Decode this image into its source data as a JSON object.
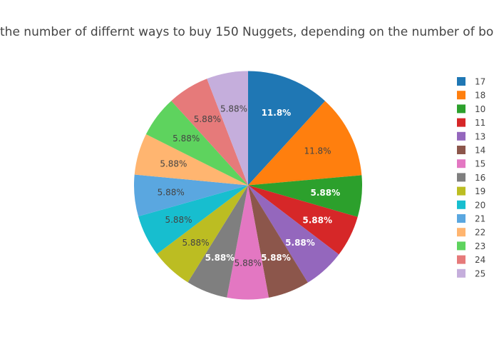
{
  "chart_data": {
    "type": "pie",
    "title": "the number of differnt ways to buy 150 Nuggets, depending on the number of bo",
    "legend_placement": "right",
    "slices": [
      {
        "label": "17",
        "value": 11.8,
        "display": "11.8%",
        "color": "#1f77b4",
        "text_color": "#ffffff"
      },
      {
        "label": "18",
        "value": 11.8,
        "display": "11.8%",
        "color": "#ff7f0e",
        "text_color": "#444444"
      },
      {
        "label": "10",
        "value": 5.88,
        "display": "5.88%",
        "color": "#2ca02c",
        "text_color": "#ffffff"
      },
      {
        "label": "11",
        "value": 5.88,
        "display": "5.88%",
        "color": "#d62728",
        "text_color": "#ffffff"
      },
      {
        "label": "13",
        "value": 5.88,
        "display": "5.88%",
        "color": "#9467bd",
        "text_color": "#ffffff"
      },
      {
        "label": "14",
        "value": 5.88,
        "display": "5.88%",
        "color": "#8c564b",
        "text_color": "#ffffff"
      },
      {
        "label": "15",
        "value": 5.88,
        "display": "5.88%",
        "color": "#e377c2",
        "text_color": "#444444"
      },
      {
        "label": "16",
        "value": 5.88,
        "display": "5.88%",
        "color": "#7f7f7f",
        "text_color": "#ffffff"
      },
      {
        "label": "19",
        "value": 5.88,
        "display": "5.88%",
        "color": "#bcbd22",
        "text_color": "#444444"
      },
      {
        "label": "20",
        "value": 5.88,
        "display": "5.88%",
        "color": "#17becf",
        "text_color": "#444444"
      },
      {
        "label": "21",
        "value": 5.88,
        "display": "5.88%",
        "color": "#5aa7e0",
        "text_color": "#444444"
      },
      {
        "label": "22",
        "value": 5.88,
        "display": "5.88%",
        "color": "#ffb570",
        "text_color": "#444444"
      },
      {
        "label": "23",
        "value": 5.88,
        "display": "5.88%",
        "color": "#5ed35e",
        "text_color": "#444444"
      },
      {
        "label": "24",
        "value": 5.88,
        "display": "5.88%",
        "color": "#e67a7a",
        "text_color": "#444444"
      },
      {
        "label": "25",
        "value": 5.88,
        "display": "5.88%",
        "color": "#c5aedc",
        "text_color": "#444444"
      }
    ]
  }
}
